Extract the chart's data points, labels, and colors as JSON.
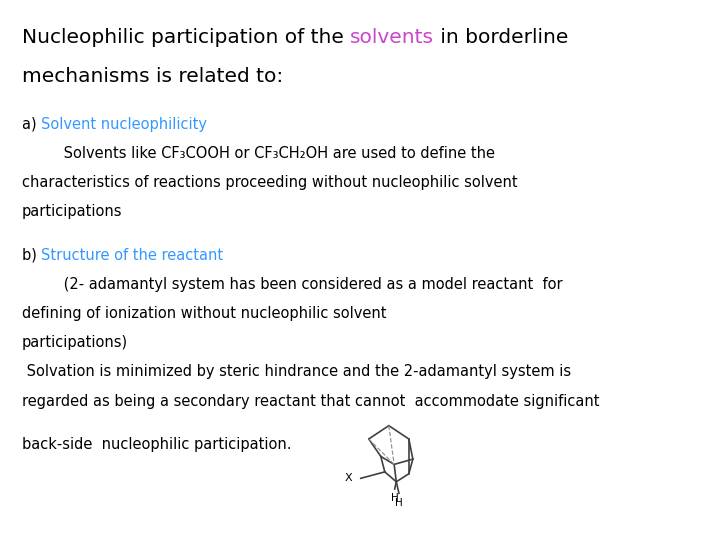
{
  "bg_color": "#ffffff",
  "title_color": "#cc44cc",
  "label_color": "#3399ff",
  "title_fontsize": 14.5,
  "body_fontsize": 10.5,
  "font_family": "DejaVu Sans",
  "solvents_text": "solvents",
  "title_line1_pre": "Nucleophilic participation of the ",
  "title_line1_post": " in borderline",
  "title_line2": "mechanisms is related to:",
  "label_a": "a) ",
  "label_a_colored": "Solvent nucleophilicity",
  "para_a_line1": "         Solvents like CF₃COOH or CF₃CH₂OH are used to define the",
  "para_a_line2": "characteristics of reactions proceeding without nucleophilic solvent",
  "para_a_line3": "participations",
  "label_b": "b) ",
  "label_b_colored": "Structure of the reactant",
  "para_b_line1": "         (2- adamantyl system has been considered as a model reactant  for",
  "para_b_line2": "defining of ionization without nucleophilic solvent",
  "para_b_line3": "participations)",
  "para_b_line4": " Solvation is minimized by steric hindrance and the 2-adamantyl system is",
  "para_b_line5": "regarded as being a secondary reactant that cannot  accommodate significant",
  "para_b_line6": "",
  "para_b_line7": "back-side  nucleophilic participation."
}
